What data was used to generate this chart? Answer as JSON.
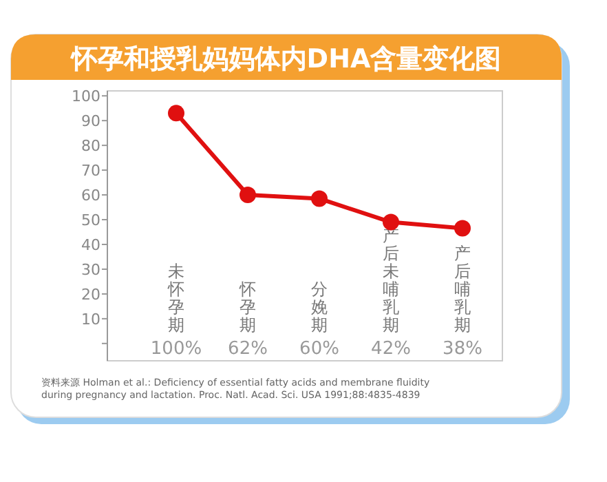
{
  "chart_data": {
    "type": "line",
    "title": "怀孕和授乳妈妈体内DHA含量变化图",
    "categories": [
      "未怀孕期\n100%",
      "怀孕期\n62%",
      "分娩期\n60%",
      "产后未哺乳期\n42%",
      "产后哺乳期\n38%"
    ],
    "series": [
      {
        "color": "#e01010",
        "values": [
          93,
          60,
          58.5,
          49,
          46.5
        ]
      }
    ],
    "ylim": [
      -7,
      102
    ],
    "yticks": [
      {
        "value": 0,
        "label": null
      },
      10,
      20,
      30,
      40,
      50,
      60,
      70,
      80,
      90,
      100
    ],
    "marker": "circle",
    "line_style": "solid",
    "grid": false,
    "annotations": [
      "资料来源 Holman et al.: Deficiency of essential fatty acids and membrane fluidity during pregnancy and lactation. Proc. Natl. Acad. Sci. USA 1991;88:4835-4839"
    ]
  }
}
